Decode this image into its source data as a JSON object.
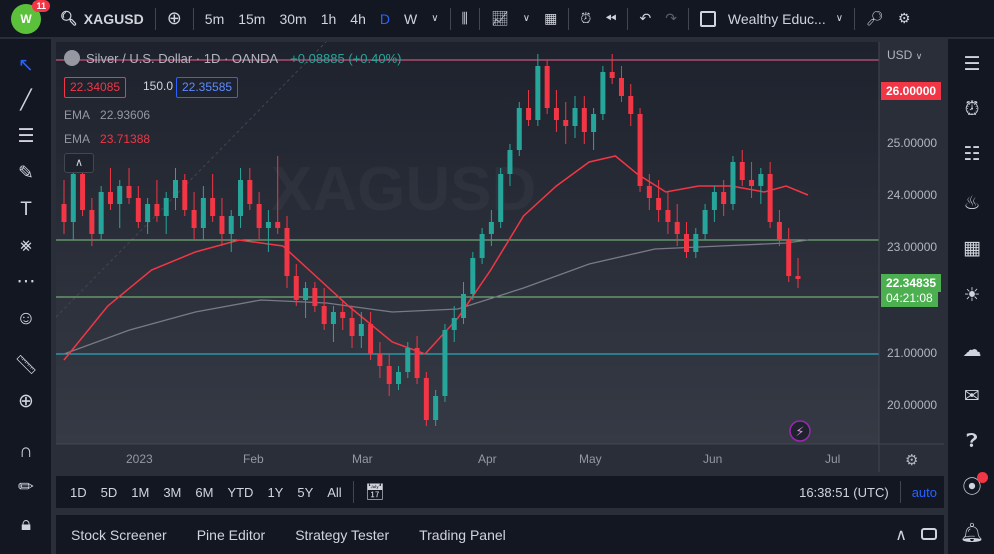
{
  "topbar": {
    "logo_text": "W",
    "notification_count": "11",
    "symbol": "XAGUSD",
    "intervals": [
      "5m",
      "15m",
      "30m",
      "1h",
      "4h",
      "D",
      "W"
    ],
    "active_interval": "D",
    "layout_name": "Wealthy Educ..."
  },
  "legend": {
    "title": "Silver / U.S. Dollar · 1D · OANDA",
    "change": "+0.08885 (+0.40%)",
    "sell_price": "22.34085",
    "spread": "150.0",
    "buy_price": "22.35585",
    "ema1_label": "EMA",
    "ema1_value": "22.93606",
    "ema2_label": "EMA",
    "ema2_value": "23.71388"
  },
  "axis": {
    "currency": "USD",
    "price_labels": [
      "25.00000",
      "24.00000",
      "23.00000",
      "21.00000",
      "20.00000"
    ],
    "tag_top": "26.00000",
    "tag_current": "22.34835",
    "tag_countdown": "04:21:08",
    "time_labels": [
      "2023",
      "Feb",
      "Mar",
      "Apr",
      "May",
      "Jun",
      "Jul"
    ]
  },
  "watermark": "XAGUSD",
  "rangebar": {
    "ranges": [
      "1D",
      "5D",
      "1M",
      "3M",
      "6M",
      "YTD",
      "1Y",
      "5Y",
      "All"
    ],
    "clock": "16:38:51 (UTC)",
    "auto": "auto"
  },
  "panelbar": {
    "items": [
      "Stock Screener",
      "Pine Editor",
      "Strategy Tester",
      "Trading Panel"
    ]
  },
  "colors": {
    "up": "#26a69a",
    "down": "#f23645",
    "ema_fast": "#f23645",
    "ema_slow": "#787b86",
    "level_lines": "#81c784",
    "accent": "#2962ff"
  },
  "chart_data": {
    "type": "candlestick",
    "ylim": [
      19.6,
      26.3
    ],
    "xlabels": [
      "2023",
      "Feb",
      "Mar",
      "Apr",
      "May",
      "Jun",
      "Jul"
    ],
    "horizontal_levels": [
      26.0,
      23.0,
      22.05,
      21.1
    ],
    "ema_fast_points": [
      [
        0,
        21.0
      ],
      [
        20,
        21.9
      ],
      [
        40,
        22.5
      ],
      [
        60,
        22.8
      ],
      [
        80,
        23.0
      ],
      [
        100,
        22.9
      ],
      [
        115,
        22.4
      ],
      [
        130,
        21.9
      ],
      [
        150,
        21.3
      ],
      [
        165,
        21.1
      ],
      [
        180,
        21.7
      ],
      [
        195,
        22.5
      ],
      [
        210,
        23.4
      ],
      [
        225,
        23.9
      ],
      [
        240,
        24.3
      ],
      [
        252,
        24.4
      ],
      [
        262,
        24.1
      ],
      [
        275,
        23.8
      ],
      [
        290,
        23.9
      ],
      [
        305,
        23.9
      ],
      [
        320,
        23.8
      ],
      [
        330,
        23.9
      ],
      [
        340,
        23.75
      ]
    ],
    "ema_slow_points": [
      [
        0,
        21.1
      ],
      [
        30,
        21.5
      ],
      [
        60,
        21.8
      ],
      [
        90,
        22.0
      ],
      [
        120,
        21.95
      ],
      [
        150,
        21.8
      ],
      [
        180,
        21.85
      ],
      [
        210,
        22.2
      ],
      [
        240,
        22.6
      ],
      [
        270,
        22.85
      ],
      [
        300,
        22.9
      ],
      [
        330,
        22.95
      ],
      [
        340,
        23.0
      ]
    ],
    "candles": [
      [
        23.6,
        24.0,
        23.1,
        23.3
      ],
      [
        23.3,
        24.3,
        23.0,
        24.1
      ],
      [
        24.1,
        24.2,
        23.4,
        23.5
      ],
      [
        23.5,
        23.7,
        22.9,
        23.1
      ],
      [
        23.1,
        23.9,
        23.0,
        23.8
      ],
      [
        23.8,
        24.2,
        23.5,
        23.6
      ],
      [
        23.6,
        24.0,
        23.2,
        23.9
      ],
      [
        23.9,
        24.2,
        23.6,
        23.7
      ],
      [
        23.7,
        23.9,
        23.2,
        23.3
      ],
      [
        23.3,
        23.7,
        23.1,
        23.6
      ],
      [
        23.6,
        24.0,
        23.3,
        23.4
      ],
      [
        23.4,
        23.8,
        23.1,
        23.7
      ],
      [
        23.7,
        24.2,
        23.5,
        24.0
      ],
      [
        24.0,
        24.1,
        23.4,
        23.5
      ],
      [
        23.5,
        23.8,
        23.0,
        23.2
      ],
      [
        23.2,
        23.9,
        23.0,
        23.7
      ],
      [
        23.7,
        24.1,
        23.3,
        23.4
      ],
      [
        23.4,
        23.7,
        22.9,
        23.1
      ],
      [
        23.1,
        23.5,
        22.8,
        23.4
      ],
      [
        23.4,
        24.2,
        23.2,
        24.0
      ],
      [
        24.0,
        24.2,
        23.5,
        23.6
      ],
      [
        23.6,
        23.8,
        23.0,
        23.2
      ],
      [
        23.2,
        23.5,
        22.8,
        23.3
      ],
      [
        23.3,
        24.4,
        23.1,
        23.2
      ],
      [
        23.2,
        23.4,
        22.2,
        22.4
      ],
      [
        22.4,
        22.6,
        21.9,
        22.0
      ],
      [
        22.0,
        22.3,
        21.7,
        22.2
      ],
      [
        22.2,
        22.3,
        21.8,
        21.9
      ],
      [
        21.9,
        22.2,
        21.5,
        21.6
      ],
      [
        21.6,
        21.9,
        21.3,
        21.8
      ],
      [
        21.8,
        22.0,
        21.5,
        21.7
      ],
      [
        21.7,
        21.9,
        21.2,
        21.4
      ],
      [
        21.4,
        21.8,
        21.2,
        21.6
      ],
      [
        21.6,
        21.8,
        21.0,
        21.1
      ],
      [
        21.1,
        21.3,
        20.7,
        20.9
      ],
      [
        20.9,
        21.1,
        20.4,
        20.6
      ],
      [
        20.6,
        20.9,
        20.5,
        20.8
      ],
      [
        20.8,
        21.3,
        20.7,
        21.2
      ],
      [
        21.2,
        21.4,
        20.6,
        20.7
      ],
      [
        20.7,
        20.8,
        19.9,
        20.0
      ],
      [
        20.0,
        20.5,
        19.9,
        20.4
      ],
      [
        20.4,
        21.6,
        20.3,
        21.5
      ],
      [
        21.5,
        21.9,
        21.3,
        21.7
      ],
      [
        21.7,
        22.3,
        21.6,
        22.1
      ],
      [
        22.1,
        22.8,
        22.0,
        22.7
      ],
      [
        22.7,
        23.2,
        22.6,
        23.1
      ],
      [
        23.1,
        23.5,
        22.9,
        23.3
      ],
      [
        23.3,
        24.2,
        23.2,
        24.1
      ],
      [
        24.1,
        24.6,
        23.9,
        24.5
      ],
      [
        24.5,
        25.3,
        24.4,
        25.2
      ],
      [
        25.2,
        25.5,
        24.9,
        25.0
      ],
      [
        25.0,
        26.1,
        24.9,
        25.9
      ],
      [
        25.9,
        26.0,
        25.1,
        25.2
      ],
      [
        25.2,
        25.5,
        24.8,
        25.0
      ],
      [
        25.0,
        25.3,
        24.6,
        24.9
      ],
      [
        24.9,
        25.4,
        24.7,
        25.2
      ],
      [
        25.2,
        25.4,
        24.6,
        24.8
      ],
      [
        24.8,
        25.2,
        24.5,
        25.1
      ],
      [
        25.1,
        25.9,
        25.0,
        25.8
      ],
      [
        25.8,
        26.1,
        25.6,
        25.7
      ],
      [
        25.7,
        25.9,
        25.3,
        25.4
      ],
      [
        25.4,
        25.6,
        24.9,
        25.1
      ],
      [
        25.1,
        25.2,
        23.8,
        23.9
      ],
      [
        23.9,
        24.1,
        23.5,
        23.7
      ],
      [
        23.7,
        24.0,
        23.3,
        23.5
      ],
      [
        23.5,
        23.8,
        23.1,
        23.3
      ],
      [
        23.3,
        23.6,
        22.9,
        23.1
      ],
      [
        23.1,
        23.3,
        22.7,
        22.8
      ],
      [
        22.8,
        23.2,
        22.7,
        23.1
      ],
      [
        23.1,
        23.6,
        23.0,
        23.5
      ],
      [
        23.5,
        23.9,
        23.3,
        23.8
      ],
      [
        23.8,
        24.0,
        23.4,
        23.6
      ],
      [
        23.6,
        24.4,
        23.5,
        24.3
      ],
      [
        24.3,
        24.5,
        23.9,
        24.0
      ],
      [
        24.0,
        24.3,
        23.7,
        23.9
      ],
      [
        23.9,
        24.2,
        23.6,
        24.1
      ],
      [
        24.1,
        24.3,
        23.2,
        23.3
      ],
      [
        23.3,
        23.5,
        22.9,
        23.0
      ],
      [
        23.0,
        23.2,
        22.3,
        22.4
      ],
      [
        22.4,
        22.7,
        22.2,
        22.35
      ]
    ]
  }
}
